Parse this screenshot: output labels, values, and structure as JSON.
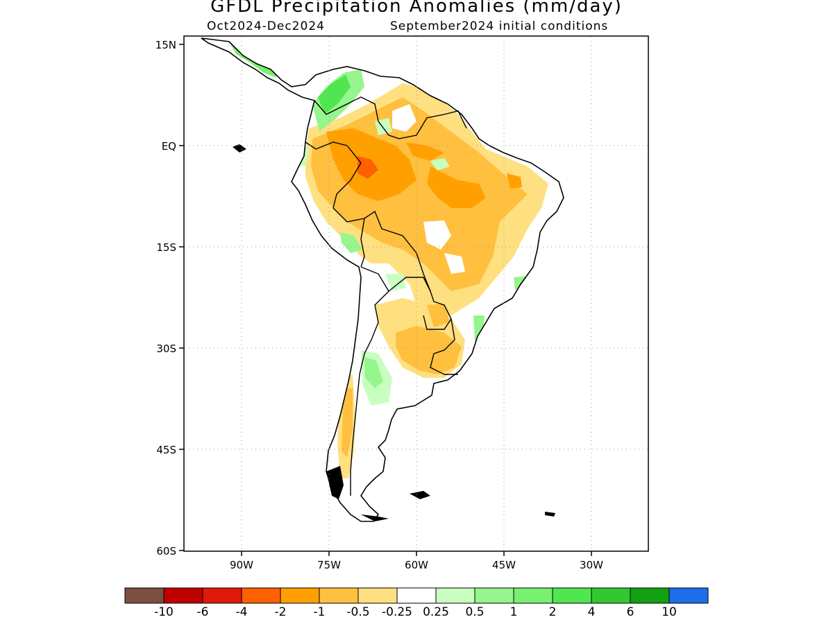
{
  "header": {
    "title": "GFDL Precipitation Anomalies (mm/day)",
    "period": "Oct2024-Dec2024",
    "init": "September2024 initial conditions"
  },
  "axes": {
    "lat_labels": [
      "15N",
      "EQ",
      "15S",
      "30S",
      "45S",
      "60S"
    ],
    "lon_labels": [
      "90W",
      "75W",
      "60W",
      "45W",
      "30W"
    ],
    "grid": true
  },
  "colorbar": {
    "colors": [
      "#7b5040",
      "#bf0000",
      "#e01a0a",
      "#ff6000",
      "#ffa000",
      "#ffc040",
      "#ffe080",
      "#ffffff",
      "#c8ffc0",
      "#96f58c",
      "#78f070",
      "#50e650",
      "#32c832",
      "#12a012",
      "#1e6eeb"
    ],
    "labels": [
      "-10",
      "-6",
      "-4",
      "-2",
      "-1",
      "-0.5",
      "-0.25",
      "0.25",
      "0.5",
      "1",
      "2",
      "4",
      "6",
      "10"
    ]
  },
  "colors": {
    "land_outline": "#000000",
    "dry_light": "#ffe080",
    "dry_medium": "#ffc040",
    "dry_strong": "#ffa000",
    "dry_severe": "#ff6000",
    "wet_light": "#c8ffc0",
    "wet_medium": "#78f070",
    "wet_strong": "#50e650"
  }
}
